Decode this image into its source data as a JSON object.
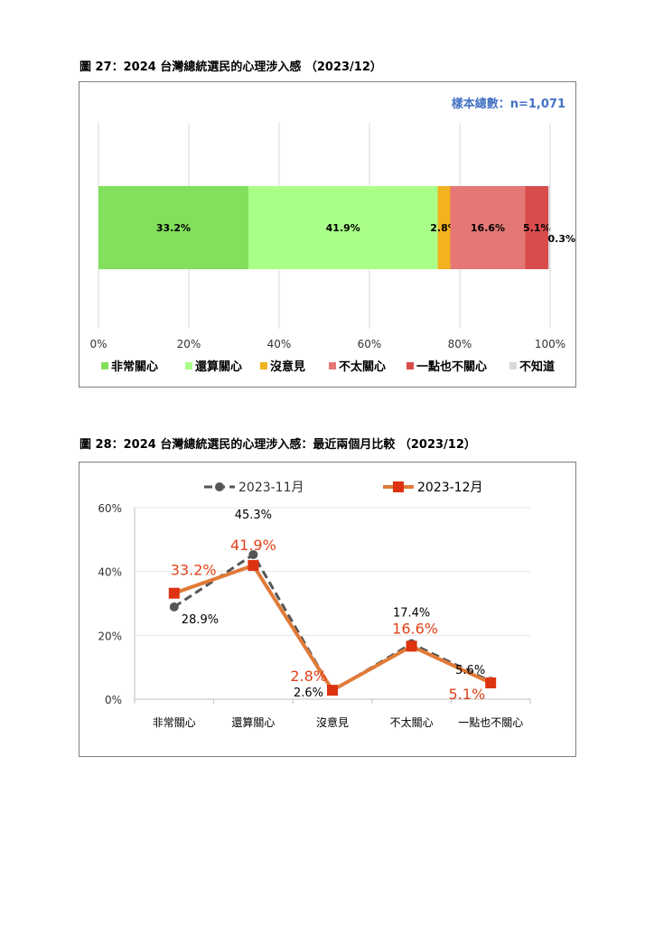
{
  "figure1": {
    "title": "圖 27：2024 台灣總統選民的心理涉入感 （2023/12）",
    "sample_note": "樣本總數：n=1,071"
  },
  "figure2": {
    "title": "圖 28：2024 台灣總統選民的心理涉入感：最近兩個月比較 （2023/12）"
  },
  "colors": {
    "very_concerned": "#82e05c",
    "fairly_concerned": "#aaff88",
    "no_opinion": "#f3b21f",
    "not_very_concerned": "#e57777",
    "not_at_all": "#d94c4c",
    "dont_know": "#d9d9d9",
    "nov_line": "#555555",
    "dec_line": "#e07b39",
    "dec_marker": "#dd3311",
    "dec_label": "#e0421a",
    "sample_note": "#4472c4"
  },
  "chart_data": [
    {
      "type": "bar",
      "orientation": "horizontal-stacked",
      "series": [
        {
          "name": "非常關心",
          "value": 33.2,
          "label": "33.2%"
        },
        {
          "name": "還算關心",
          "value": 41.9,
          "label": "41.9%"
        },
        {
          "name": "沒意見",
          "value": 2.8,
          "label": "2.8%"
        },
        {
          "name": "不太關心",
          "value": 16.6,
          "label": "16.6%"
        },
        {
          "name": "一點也不關心",
          "value": 5.1,
          "label": "5.1%"
        },
        {
          "name": "不知道",
          "value": 0.3,
          "label": "0.3%"
        }
      ],
      "xlim": [
        0,
        100
      ],
      "ticks": [
        "0%",
        "20%",
        "40%",
        "60%",
        "80%",
        "100%"
      ],
      "grid": true,
      "legend": "bottom"
    },
    {
      "type": "line",
      "categories": [
        "非常關心",
        "還算關心",
        "沒意見",
        "不太關心",
        "一點也不關心"
      ],
      "series": [
        {
          "name": "2023-11月",
          "values": [
            28.9,
            45.3,
            2.6,
            17.4,
            5.6
          ],
          "labels": [
            "28.9%",
            "45.3%",
            "2.6%",
            "17.4%",
            "5.6%"
          ]
        },
        {
          "name": "2023-12月",
          "values": [
            33.2,
            41.9,
            2.8,
            16.6,
            5.1
          ],
          "labels": [
            "33.2%",
            "41.9%",
            "2.8%",
            "16.6%",
            "5.1%"
          ]
        }
      ],
      "ylim": [
        0,
        60
      ],
      "ticks": [
        "0%",
        "20%",
        "40%",
        "60%"
      ],
      "grid": true,
      "legend": "top"
    }
  ]
}
